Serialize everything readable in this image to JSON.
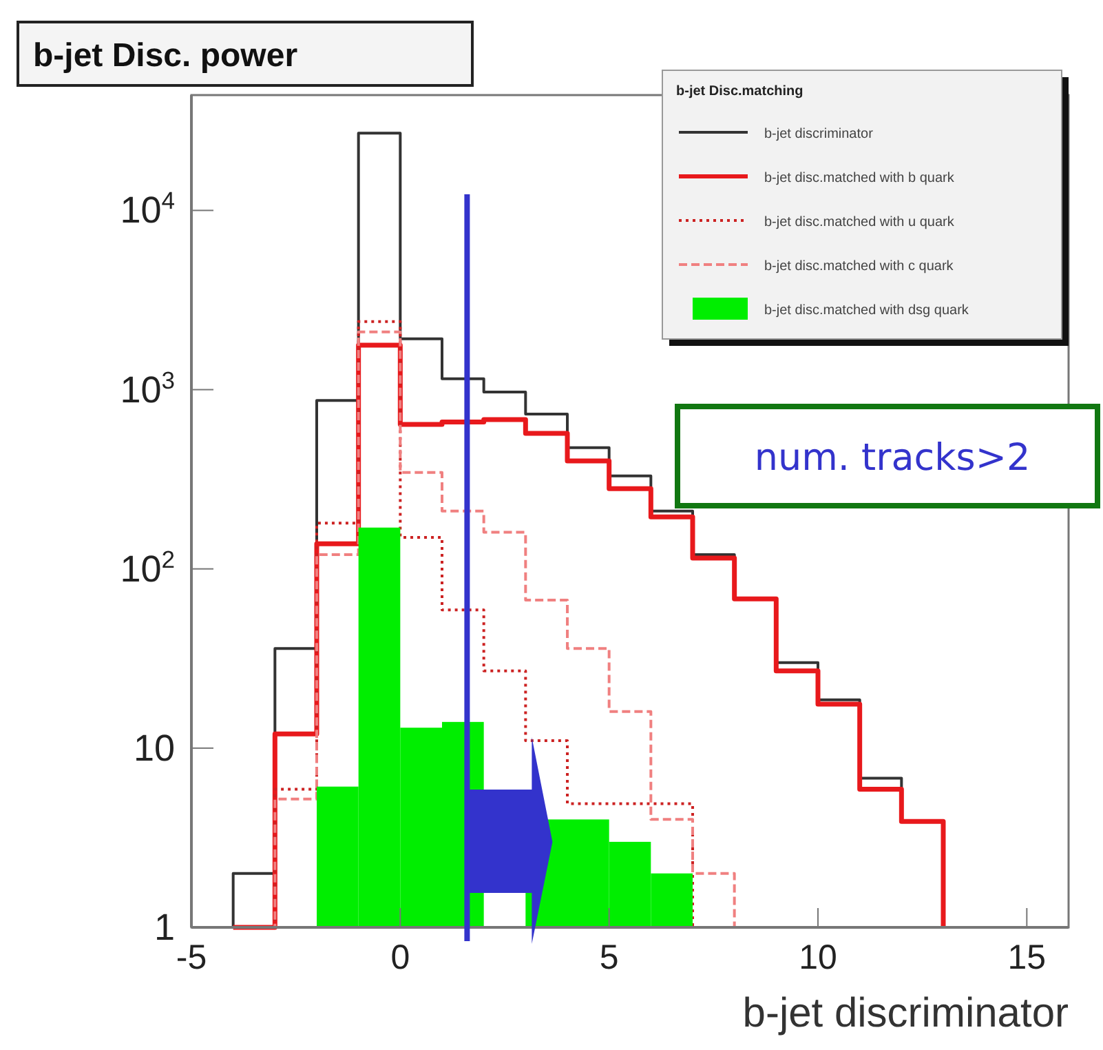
{
  "chart_data": {
    "type": "histogram",
    "title": "b-jet Disc. power",
    "xlabel": "b-jet discriminator",
    "legend_title": "b-jet Disc.matching",
    "legend": "top right",
    "log": "y",
    "bins": [
      -2,
      -1,
      0,
      1,
      2,
      3,
      4,
      5,
      6,
      7
    ],
    "xlim": [
      -5,
      16
    ],
    "xticks": [
      -5,
      0,
      5,
      10,
      15
    ],
    "ylim": [
      1,
      44000
    ],
    "yticks": [
      1,
      10,
      {
        "value": 100,
        "label": "10$^{2}$"
      },
      {
        "value": 1000,
        "label": "10$^{3}$"
      },
      {
        "value": 10000,
        "label": "10$^{4}$"
      }
    ],
    "series": [
      {
        "name": "b-jet discriminator",
        "type": "step",
        "color": "#333333",
        "line_style": "solid",
        "x": [
          -5,
          -4,
          -3,
          -2,
          -1,
          0,
          1,
          2,
          3,
          4,
          5,
          6,
          7,
          8,
          9,
          10,
          11,
          12,
          13
        ],
        "values": [
          1,
          2,
          36,
          870,
          27000,
          1920,
          1150,
          970,
          730,
          475,
          330,
          210,
          120,
          68,
          30,
          18.6,
          6.8,
          3.9,
          1
        ]
      },
      {
        "name": "b-jet disc.matched with b quark",
        "type": "step",
        "color": "#e8191c",
        "line_style": "solid",
        "x": [
          -4,
          -3,
          -2,
          -1,
          0,
          1,
          2,
          3,
          4,
          5,
          6,
          7,
          8,
          9,
          10,
          11,
          12,
          13
        ],
        "values": [
          1,
          12,
          138,
          1770,
          640,
          660,
          680,
          570,
          400,
          280,
          195,
          115,
          68,
          27,
          17.6,
          5.9,
          3.9,
          1
        ]
      },
      {
        "name": "b-jet disc.matched with u quark",
        "type": "step",
        "color": "#cc2222",
        "line_style": "dotted",
        "x": [
          -4,
          -3,
          -2,
          -1,
          0,
          1,
          2,
          3,
          4,
          5,
          6,
          7
        ],
        "values": [
          1,
          5.9,
          180,
          2400,
          150,
          59,
          27,
          11,
          4.9,
          4.9,
          4.9,
          1
        ]
      },
      {
        "name": "b-jet disc.matched with c quark",
        "type": "step",
        "color": "#f08080",
        "line_style": "dashed",
        "x": [
          -4,
          -3,
          -2,
          -1,
          0,
          1,
          2,
          3,
          4,
          5,
          6,
          7,
          8
        ],
        "values": [
          1,
          5.2,
          120,
          2100,
          345,
          210,
          160,
          67,
          36,
          16,
          4,
          2,
          1
        ]
      },
      {
        "name": "b-jet disc.matched with dsg quark",
        "color": "#00ee00",
        "values": [
          6.1,
          170,
          13,
          14,
          null,
          4,
          4,
          3,
          2
        ]
      }
    ],
    "ref_lines": [
      {
        "axis": "x",
        "value": 1.6,
        "color": "#3333cc"
      }
    ],
    "annotations": [
      "num. tracks>2"
    ]
  }
}
